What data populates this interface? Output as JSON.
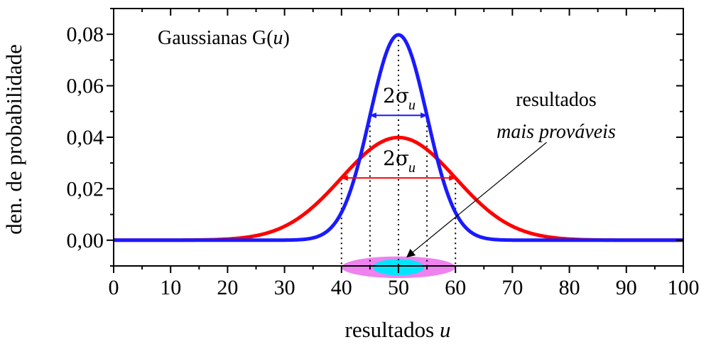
{
  "chart_data": {
    "type": "line",
    "title": "Gaussianas G(u)",
    "title_parts": {
      "prefix": "Gaussianas G(",
      "variable": "u",
      "suffix": ")"
    },
    "xlabel": "resultados u",
    "xlabel_parts": {
      "text": "resultados ",
      "variable": "u"
    },
    "ylabel": "den. de probabilidade",
    "xlim": [
      0,
      100
    ],
    "ylim": [
      -0.01,
      0.09
    ],
    "x_ticks": [
      0,
      10,
      20,
      30,
      40,
      50,
      60,
      70,
      80,
      90,
      100
    ],
    "x_tick_labels": [
      "0",
      "10",
      "20",
      "30",
      "40",
      "50",
      "60",
      "70",
      "80",
      "90",
      "100"
    ],
    "y_ticks": [
      0.0,
      0.02,
      0.04,
      0.06,
      0.08
    ],
    "y_tick_labels": [
      "0,00",
      "0,02",
      "0,04",
      "0,06",
      "0,08"
    ],
    "grid": false,
    "series": [
      {
        "mean": 50,
        "sigma": 5,
        "color": "#1a1aff",
        "x_from": 0,
        "x_to": 100
      },
      {
        "mean": 50,
        "sigma": 10,
        "color": "#ff0000",
        "x_from": 0,
        "x_to": 100
      }
    ],
    "width_markers": [
      {
        "label": "2σ",
        "subscript": "u",
        "x_from": 45,
        "x_to": 55,
        "y": 0.0485,
        "color": "#1a1aff"
      },
      {
        "label": "2σ",
        "subscript": "u",
        "x_from": 40,
        "x_to": 60,
        "y": 0.0242,
        "color": "#ff0000"
      }
    ],
    "dotted_guides": [
      40,
      45,
      50,
      55,
      60
    ],
    "highlight_ellipses": [
      {
        "cx": 50,
        "cy": -0.0105,
        "rx_data": 10,
        "ry_data": 0.0042,
        "color": "#ee82ee"
      },
      {
        "cx": 50,
        "cy": -0.0105,
        "rx_data": 4.5,
        "ry_data": 0.0032,
        "color": "#00e5ff"
      }
    ],
    "annotation": {
      "line1": "resultados",
      "line2": "mais prováveis",
      "arrow_from": [
        76,
        0.038
      ],
      "arrow_to": [
        51.5,
        -0.0065
      ]
    },
    "colors": {
      "blue": "#1a1aff",
      "red": "#ff0000",
      "violet": "#ee82ee",
      "cyan": "#00e5ff",
      "axis": "#000000"
    }
  }
}
